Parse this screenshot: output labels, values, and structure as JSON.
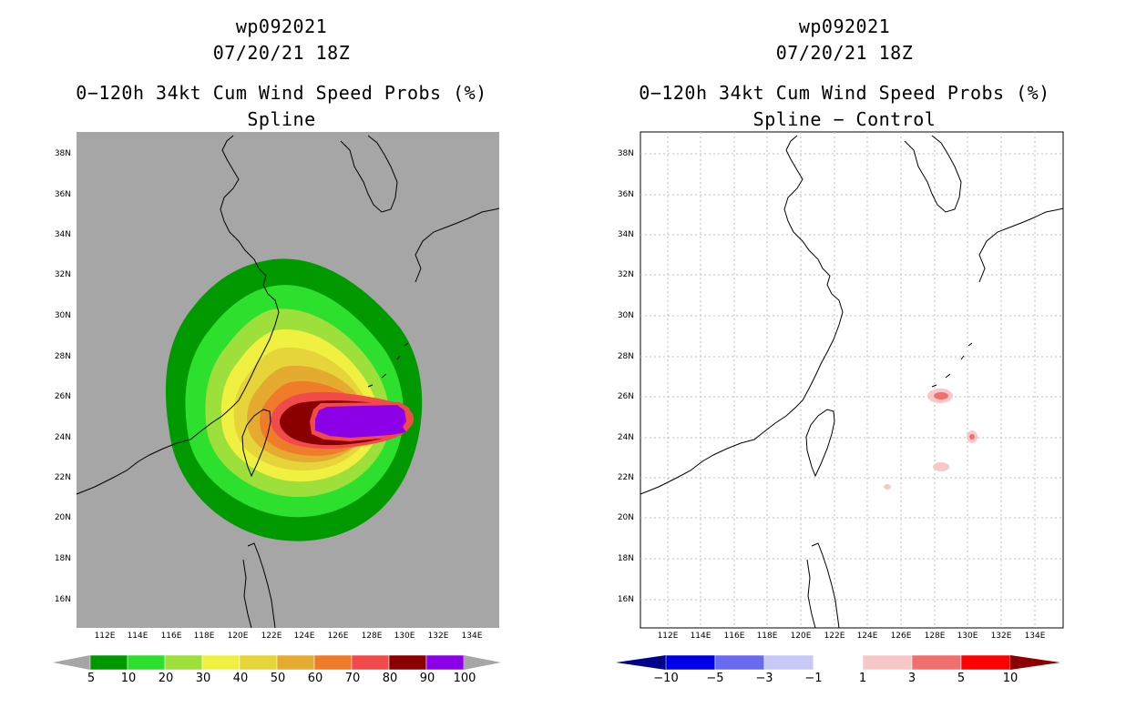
{
  "colors": {
    "map_bg_left": "#a6a6a6",
    "map_bg_right": "#ffffff",
    "coast": "#000000",
    "grid": "#bdbdbd"
  },
  "left_panel": {
    "storm_id": "wp092021",
    "datetime": "07/20/21 18Z",
    "title": "0−120h 34kt Cum Wind Speed Probs (%)",
    "subtitle": "Spline",
    "lat_labels": [
      "38N",
      "36N",
      "34N",
      "32N",
      "30N",
      "28N",
      "26N",
      "24N",
      "22N",
      "20N",
      "18N",
      "16N"
    ],
    "lon_labels": [
      "112E",
      "114E",
      "116E",
      "118E",
      "120E",
      "122E",
      "124E",
      "126E",
      "128E",
      "130E",
      "132E",
      "134E"
    ],
    "colorbar": {
      "labels": [
        "5",
        "10",
        "20",
        "30",
        "40",
        "50",
        "60",
        "70",
        "80",
        "90",
        "100"
      ],
      "colors": [
        "#009a00",
        "#2ee02e",
        "#9de03c",
        "#f0f040",
        "#e5d53a",
        "#e5aa30",
        "#ef7c28",
        "#f04a4a",
        "#8a0000",
        "#8c00e8"
      ],
      "end_color_left": "#a6a6a6",
      "end_color_right": "#a6a6a6"
    },
    "contour_colors": [
      "#009a00",
      "#2ee02e",
      "#9de03c",
      "#f0f040",
      "#e5d53a",
      "#e5aa30",
      "#ef7c28",
      "#f04a4a",
      "#8a0000",
      "#8c00e8"
    ]
  },
  "right_panel": {
    "storm_id": "wp092021",
    "datetime": "07/20/21 18Z",
    "title": "0−120h 34kt Cum Wind Speed Probs (%)",
    "subtitle": "Spline − Control",
    "lat_labels": [
      "38N",
      "36N",
      "34N",
      "32N",
      "30N",
      "28N",
      "26N",
      "24N",
      "22N",
      "20N",
      "18N",
      "16N"
    ],
    "lon_labels": [
      "112E",
      "114E",
      "116E",
      "118E",
      "120E",
      "122E",
      "124E",
      "126E",
      "128E",
      "130E",
      "132E",
      "134E"
    ],
    "colorbar": {
      "labels": [
        "−10",
        "−5",
        "−3",
        "−1",
        "1",
        "3",
        "5",
        "10"
      ],
      "colors": [
        "#0000e6",
        "#6a6af0",
        "#c8c8f6",
        "#ffffff",
        "#f8c8c8",
        "#f07070",
        "#ff0000"
      ],
      "end_color_left": "#00008c",
      "end_color_right": "#8c0000"
    },
    "diff_colors": [
      "#f8c8c8",
      "#f07070"
    ]
  }
}
